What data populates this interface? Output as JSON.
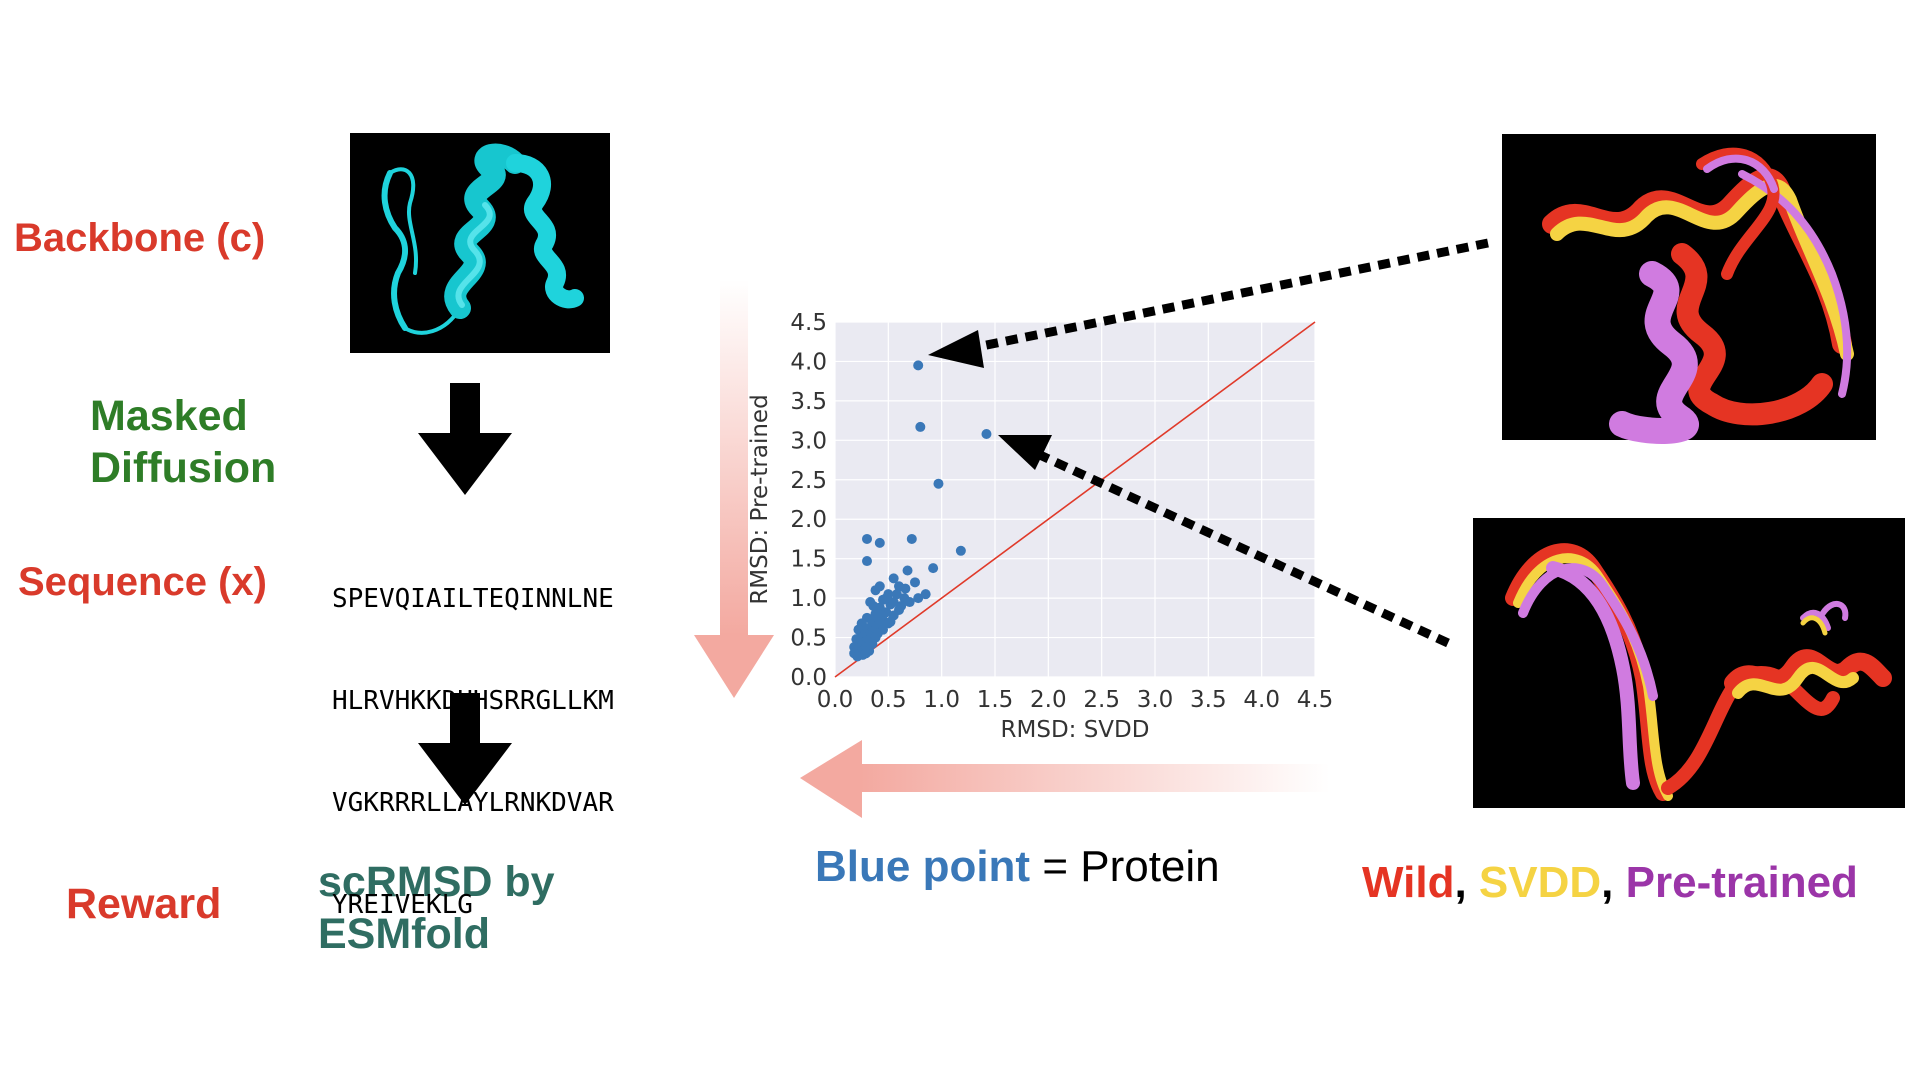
{
  "left_labels": {
    "backbone": "Backbone (c)",
    "masked_diffusion": [
      "Masked",
      "Diffusion"
    ],
    "sequence": "Sequence (x)",
    "reward": "Reward",
    "reward_method": [
      "scRMSD by",
      "ESMfold"
    ]
  },
  "sequence_lines": [
    "SPEVQIAILTEQINNLNE",
    "HLRVHKKDHHSRRGLLKM",
    "VGKRRRLLAYLRNKDVAR",
    "YREIVEKLG"
  ],
  "legend_text": {
    "blue_point": "Blue point",
    "equals": " = Protein"
  },
  "structure_legend": [
    {
      "text": "Wild",
      "color": "#e53423"
    },
    {
      "text": ", ",
      "color": "#000000"
    },
    {
      "text": "SVDD",
      "color": "#f5d343"
    },
    {
      "text": ", ",
      "color": "#000000"
    },
    {
      "text": "Pre-trained",
      "color": "#9b35a8"
    }
  ],
  "colors": {
    "red_label": "#d93a2b",
    "green_label": "#2e7d27",
    "teal_label": "#2f6d62",
    "blue_label": "#3a78b8",
    "helix_cyan": "#1fd3dc",
    "wild": "#e53423",
    "svdd": "#f5d343",
    "pretrained": "#d07be0"
  },
  "chart_data": {
    "type": "scatter",
    "xlabel": "RMSD: SVDD",
    "ylabel": "RMSD: Pre-trained",
    "xlim": [
      0,
      4.5
    ],
    "ylim": [
      0,
      4.5
    ],
    "xticks": [
      "0.0",
      "0.5",
      "1.0",
      "1.5",
      "2.0",
      "2.5",
      "3.0",
      "3.5",
      "4.0",
      "4.5"
    ],
    "yticks": [
      "0.0",
      "0.5",
      "1.0",
      "1.5",
      "2.0",
      "2.5",
      "3.0",
      "3.5",
      "4.0",
      "4.5"
    ],
    "grid": true,
    "diagonal": true,
    "series": [
      {
        "color": "#3a78b8",
        "points": [
          [
            0.78,
            3.95
          ],
          [
            0.8,
            3.17
          ],
          [
            1.42,
            3.08
          ],
          [
            0.97,
            2.45
          ],
          [
            0.3,
            1.75
          ],
          [
            0.72,
            1.75
          ],
          [
            0.42,
            1.7
          ],
          [
            1.18,
            1.6
          ],
          [
            0.92,
            1.38
          ],
          [
            0.3,
            1.47
          ],
          [
            0.68,
            1.35
          ],
          [
            0.55,
            1.25
          ],
          [
            0.75,
            1.2
          ],
          [
            0.6,
            1.15
          ],
          [
            0.42,
            1.15
          ],
          [
            0.38,
            1.1
          ],
          [
            0.5,
            1.05
          ],
          [
            0.65,
            1.0
          ],
          [
            0.78,
            1.0
          ],
          [
            0.45,
            0.98
          ],
          [
            0.7,
            0.95
          ],
          [
            0.33,
            0.95
          ],
          [
            0.52,
            0.92
          ],
          [
            0.42,
            0.88
          ],
          [
            0.6,
            0.85
          ],
          [
            0.48,
            0.82
          ],
          [
            0.38,
            0.8
          ],
          [
            0.55,
            0.78
          ],
          [
            0.3,
            0.75
          ],
          [
            0.45,
            0.72
          ],
          [
            0.35,
            0.7
          ],
          [
            0.5,
            0.68
          ],
          [
            0.25,
            0.68
          ],
          [
            0.4,
            0.65
          ],
          [
            0.3,
            0.62
          ],
          [
            0.45,
            0.6
          ],
          [
            0.22,
            0.6
          ],
          [
            0.35,
            0.58
          ],
          [
            0.28,
            0.55
          ],
          [
            0.4,
            0.55
          ],
          [
            0.32,
            0.52
          ],
          [
            0.25,
            0.5
          ],
          [
            0.38,
            0.5
          ],
          [
            0.2,
            0.48
          ],
          [
            0.3,
            0.46
          ],
          [
            0.28,
            0.44
          ],
          [
            0.22,
            0.42
          ],
          [
            0.35,
            0.42
          ],
          [
            0.25,
            0.4
          ],
          [
            0.18,
            0.38
          ],
          [
            0.3,
            0.38
          ],
          [
            0.22,
            0.36
          ],
          [
            0.27,
            0.34
          ],
          [
            0.2,
            0.32
          ],
          [
            0.24,
            0.3
          ],
          [
            0.18,
            0.3
          ],
          [
            0.32,
            0.33
          ],
          [
            0.26,
            0.28
          ],
          [
            0.21,
            0.26
          ],
          [
            0.29,
            0.3
          ],
          [
            0.55,
            0.95
          ],
          [
            0.62,
            0.9
          ],
          [
            0.48,
            1.0
          ],
          [
            0.58,
            1.05
          ],
          [
            0.66,
            1.12
          ],
          [
            0.85,
            1.05
          ],
          [
            0.36,
            0.9
          ],
          [
            0.44,
            0.78
          ],
          [
            0.52,
            0.7
          ],
          [
            0.4,
            0.75
          ]
        ]
      }
    ]
  }
}
